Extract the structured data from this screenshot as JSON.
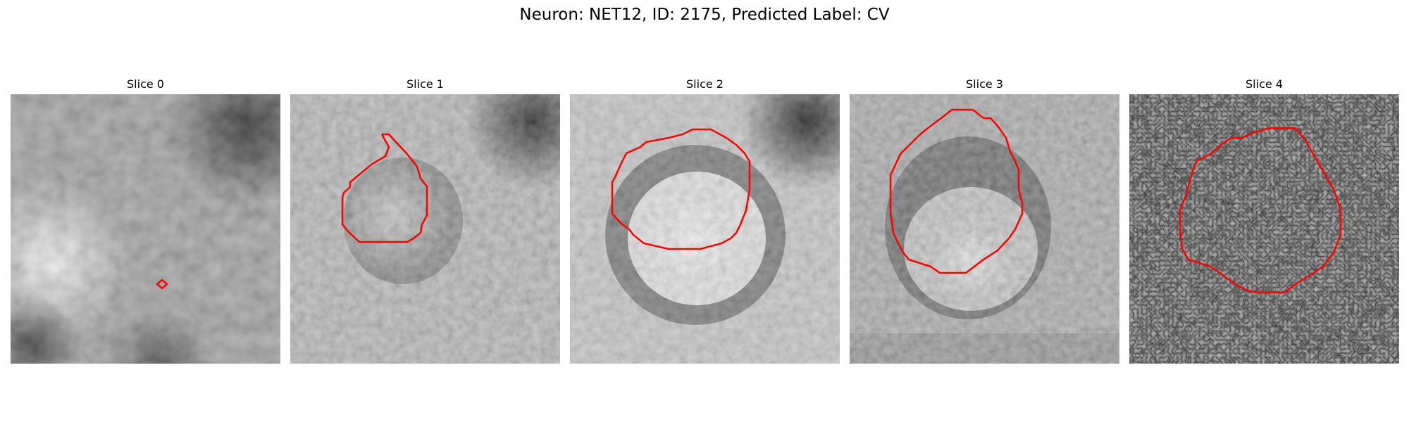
{
  "figure": {
    "title": "Neuron: NET12, ID: 2175, Predicted Label: CV",
    "outline_color": "#ff0000",
    "colormap": "gray"
  },
  "panels": [
    {
      "title": "Slice 0"
    },
    {
      "title": "Slice 1"
    },
    {
      "title": "Slice 2"
    },
    {
      "title": "Slice 3"
    },
    {
      "title": "Slice 4"
    }
  ]
}
